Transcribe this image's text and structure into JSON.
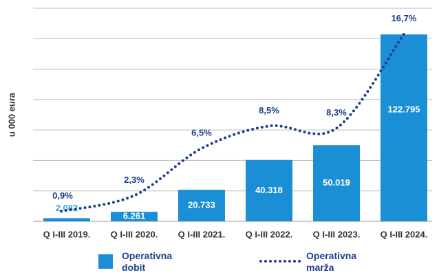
{
  "chart_data": {
    "type": "bar",
    "y_label": "u 000 eura",
    "categories": [
      "Q I-III 2019.",
      "Q I-III 2020.",
      "Q I-III 2021.",
      "Q I-III 2022.",
      "Q I-III 2023.",
      "Q I-III 2024."
    ],
    "series": [
      {
        "name": "Operativna dobit",
        "type": "bar",
        "color": "#1b8fd6",
        "values": [
          2082,
          6261,
          20733,
          40318,
          50019,
          122795
        ],
        "value_labels": [
          "2.082",
          "6.261",
          "20.733",
          "40.318",
          "50.019",
          "122.795"
        ]
      },
      {
        "name": "Operativna marža",
        "type": "line",
        "axis": "y2",
        "color": "#1d3f8a",
        "values": [
          0.9,
          2.3,
          6.5,
          8.5,
          8.3,
          16.7
        ],
        "value_labels": [
          "0,9%",
          "2,3%",
          "6,5%",
          "8,5%",
          "8,3%",
          "16,7%"
        ]
      }
    ],
    "ylim": [
      0,
      140000
    ],
    "yticks": [
      0,
      20000,
      40000,
      60000,
      80000,
      100000,
      120000,
      140000
    ],
    "y2lim": [
      0,
      19
    ],
    "grid": true
  }
}
